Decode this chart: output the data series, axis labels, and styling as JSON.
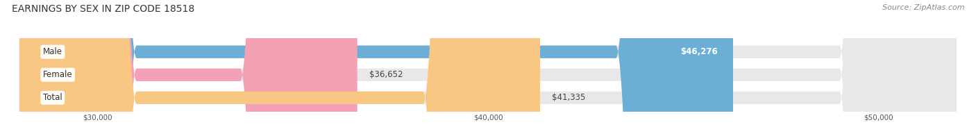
{
  "title": "EARNINGS BY SEX IN ZIP CODE 18518",
  "source": "Source: ZipAtlas.com",
  "categories": [
    "Male",
    "Female",
    "Total"
  ],
  "values": [
    46276,
    36652,
    41335
  ],
  "bar_colors": [
    "#6baed6",
    "#f4a0b5",
    "#f9c784"
  ],
  "bar_bg_color": "#e8e8e8",
  "xmin": 28000,
  "xmax": 52000,
  "xticks": [
    30000,
    40000,
    50000
  ],
  "xtick_labels": [
    "$30,000",
    "$40,000",
    "$50,000"
  ],
  "value_labels": [
    "$46,276",
    "$36,652",
    "$41,335"
  ],
  "title_fontsize": 10,
  "source_fontsize": 8,
  "bar_label_fontsize": 8.5,
  "value_fontsize": 8.5,
  "background_color": "#ffffff",
  "bar_height": 0.55
}
